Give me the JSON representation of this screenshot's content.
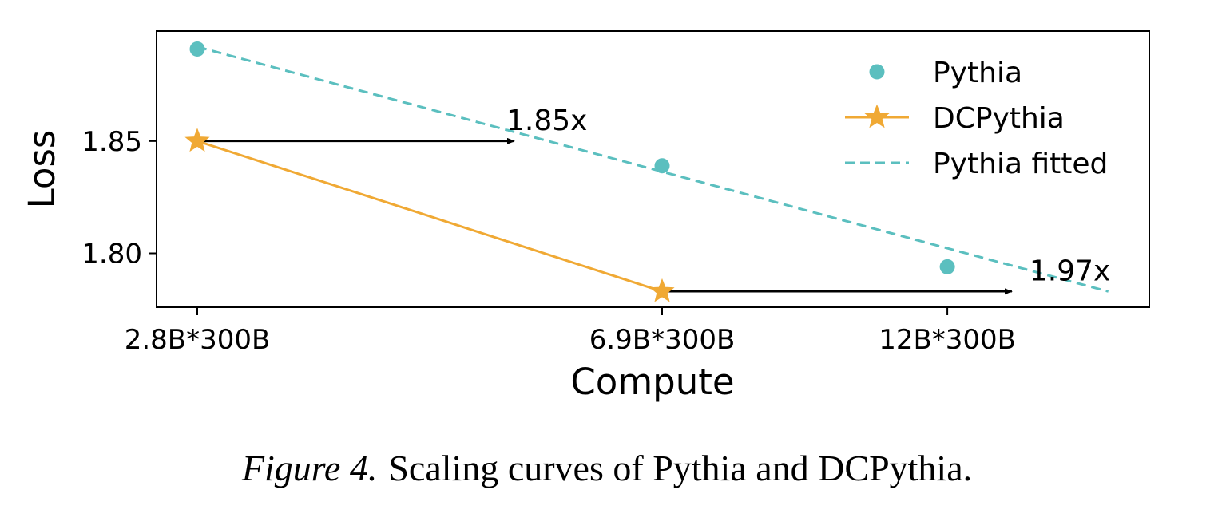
{
  "chart_data": {
    "type": "line",
    "xlabel": "Compute",
    "ylabel": "Loss",
    "x_ticks": [
      "2.8B*300B",
      "6.9B*300B",
      "12B*300B"
    ],
    "x_compute_params_billion": [
      2.8,
      6.9,
      12
    ],
    "x_scale": "log",
    "y_ticks": [
      1.85,
      1.8
    ],
    "y_tick_labels": [
      "1.85",
      "1.80"
    ],
    "ylim": [
      1.776,
      1.899
    ],
    "grid": false,
    "legend_position": "top-right",
    "series": [
      {
        "name": "Pythia",
        "style": "scatter",
        "color": "#5bbfbf",
        "points": [
          {
            "x": 2.8,
            "y": 1.891
          },
          {
            "x": 6.9,
            "y": 1.839
          },
          {
            "x": 12,
            "y": 1.794
          }
        ]
      },
      {
        "name": "DCPythia",
        "style": "line-star",
        "color": "#f0a934",
        "points": [
          {
            "x": 2.8,
            "y": 1.85
          },
          {
            "x": 6.9,
            "y": 1.783
          }
        ]
      },
      {
        "name": "Pythia fitted",
        "style": "dashed",
        "color": "#5bbfbf",
        "points": [
          {
            "x": 2.8,
            "y": 1.892
          },
          {
            "x": 16.4,
            "y": 1.783
          }
        ]
      }
    ],
    "annotations": [
      {
        "text": "1.85x",
        "y": 1.85,
        "from_x": 2.8,
        "to_x": 5.18
      },
      {
        "text": "1.97x",
        "y": 1.783,
        "from_x": 6.9,
        "to_x": 13.6
      }
    ]
  },
  "caption": {
    "label": "Figure 4.",
    "text": "Scaling curves of Pythia and DCPythia."
  }
}
